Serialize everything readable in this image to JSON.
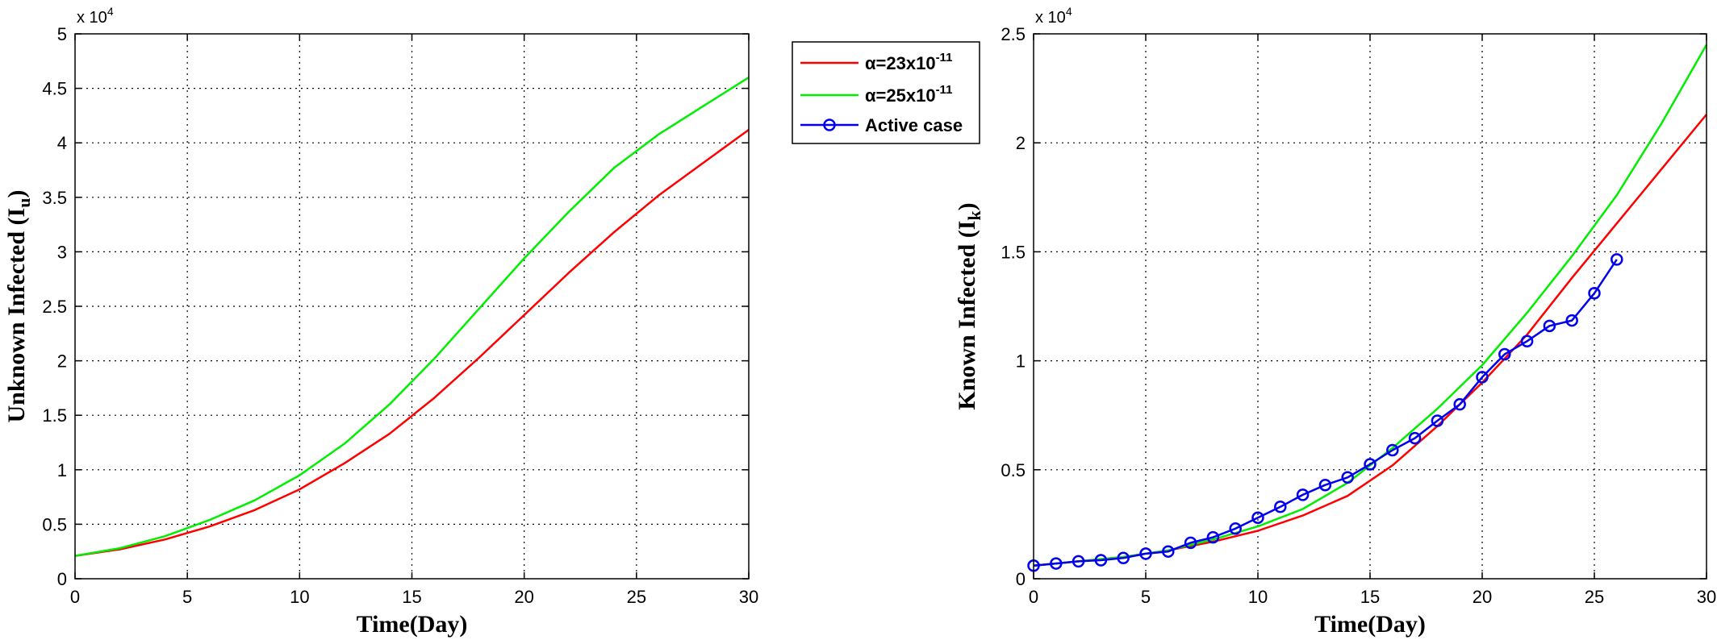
{
  "chart_data": [
    {
      "type": "line",
      "xlabel": "Time(Day)",
      "ylabel_main": "Unknown Infected (I",
      "ylabel_sub": "u",
      "ylabel_close": ")",
      "y_exponent_base": "x 10",
      "y_exponent_power": "4",
      "xlim": [
        0,
        30
      ],
      "ylim": [
        0,
        5
      ],
      "xticks": [
        0,
        5,
        10,
        15,
        20,
        25,
        30
      ],
      "yticks": [
        0,
        0.5,
        1,
        1.5,
        2,
        2.5,
        3,
        3.5,
        4,
        4.5,
        5
      ],
      "grid": true,
      "series": [
        {
          "color": "#ff0000",
          "x": [
            0,
            2,
            4,
            6,
            8,
            10,
            12,
            14,
            16,
            18,
            20,
            22,
            24,
            26,
            28,
            30
          ],
          "values": [
            0.21,
            0.27,
            0.36,
            0.48,
            0.63,
            0.82,
            1.06,
            1.33,
            1.66,
            2.03,
            2.42,
            2.81,
            3.18,
            3.52,
            3.82,
            4.12
          ]
        },
        {
          "color": "#00ee00",
          "x": [
            0,
            2,
            4,
            6,
            8,
            10,
            12,
            14,
            16,
            18,
            20,
            22,
            24,
            26,
            28,
            30
          ],
          "values": [
            0.21,
            0.28,
            0.39,
            0.54,
            0.72,
            0.95,
            1.24,
            1.6,
            2.02,
            2.48,
            2.94,
            3.37,
            3.77,
            4.08,
            4.34,
            4.6
          ]
        }
      ]
    },
    {
      "type": "line",
      "xlabel": "Time(Day)",
      "ylabel_main": "Known Infected (I",
      "ylabel_sub": "k",
      "ylabel_close": ")",
      "y_exponent_base": "x 10",
      "y_exponent_power": "4",
      "xlim": [
        0,
        30
      ],
      "ylim": [
        0,
        2.5
      ],
      "xticks": [
        0,
        5,
        10,
        15,
        20,
        25,
        30
      ],
      "yticks": [
        0,
        0.5,
        1,
        1.5,
        2,
        2.5
      ],
      "grid": true,
      "legend_position": "outside-top-right",
      "series": [
        {
          "name_prefix": "α=23x10",
          "name_power": "-11",
          "color": "#ff0000",
          "marker": "none",
          "x": [
            0,
            2,
            4,
            6,
            8,
            10,
            12,
            14,
            16,
            18,
            20,
            22,
            24,
            26,
            28,
            30
          ],
          "values": [
            0.06,
            0.08,
            0.1,
            0.13,
            0.17,
            0.22,
            0.29,
            0.38,
            0.52,
            0.7,
            0.9,
            1.12,
            1.38,
            1.63,
            1.88,
            2.13
          ]
        },
        {
          "name_prefix": "α=25x10",
          "name_power": "-11",
          "color": "#00ee00",
          "marker": "none",
          "x": [
            0,
            2,
            4,
            6,
            8,
            10,
            12,
            14,
            16,
            18,
            20,
            22,
            24,
            26,
            28,
            30
          ],
          "values": [
            0.06,
            0.08,
            0.1,
            0.13,
            0.18,
            0.24,
            0.32,
            0.44,
            0.6,
            0.78,
            0.98,
            1.22,
            1.48,
            1.76,
            2.09,
            2.45
          ]
        },
        {
          "name": "Active case",
          "color": "#0000ee",
          "marker": "circle",
          "x": [
            0,
            1,
            2,
            3,
            4,
            5,
            6,
            7,
            8,
            9,
            10,
            11,
            12,
            13,
            14,
            15,
            16,
            17,
            18,
            19,
            20,
            21,
            22,
            23,
            24,
            25,
            26
          ],
          "values": [
            0.06,
            0.07,
            0.08,
            0.085,
            0.095,
            0.115,
            0.125,
            0.165,
            0.19,
            0.23,
            0.28,
            0.33,
            0.385,
            0.43,
            0.465,
            0.525,
            0.59,
            0.645,
            0.725,
            0.8,
            0.925,
            1.03,
            1.09,
            1.16,
            1.185,
            1.31,
            1.465
          ]
        }
      ]
    }
  ]
}
